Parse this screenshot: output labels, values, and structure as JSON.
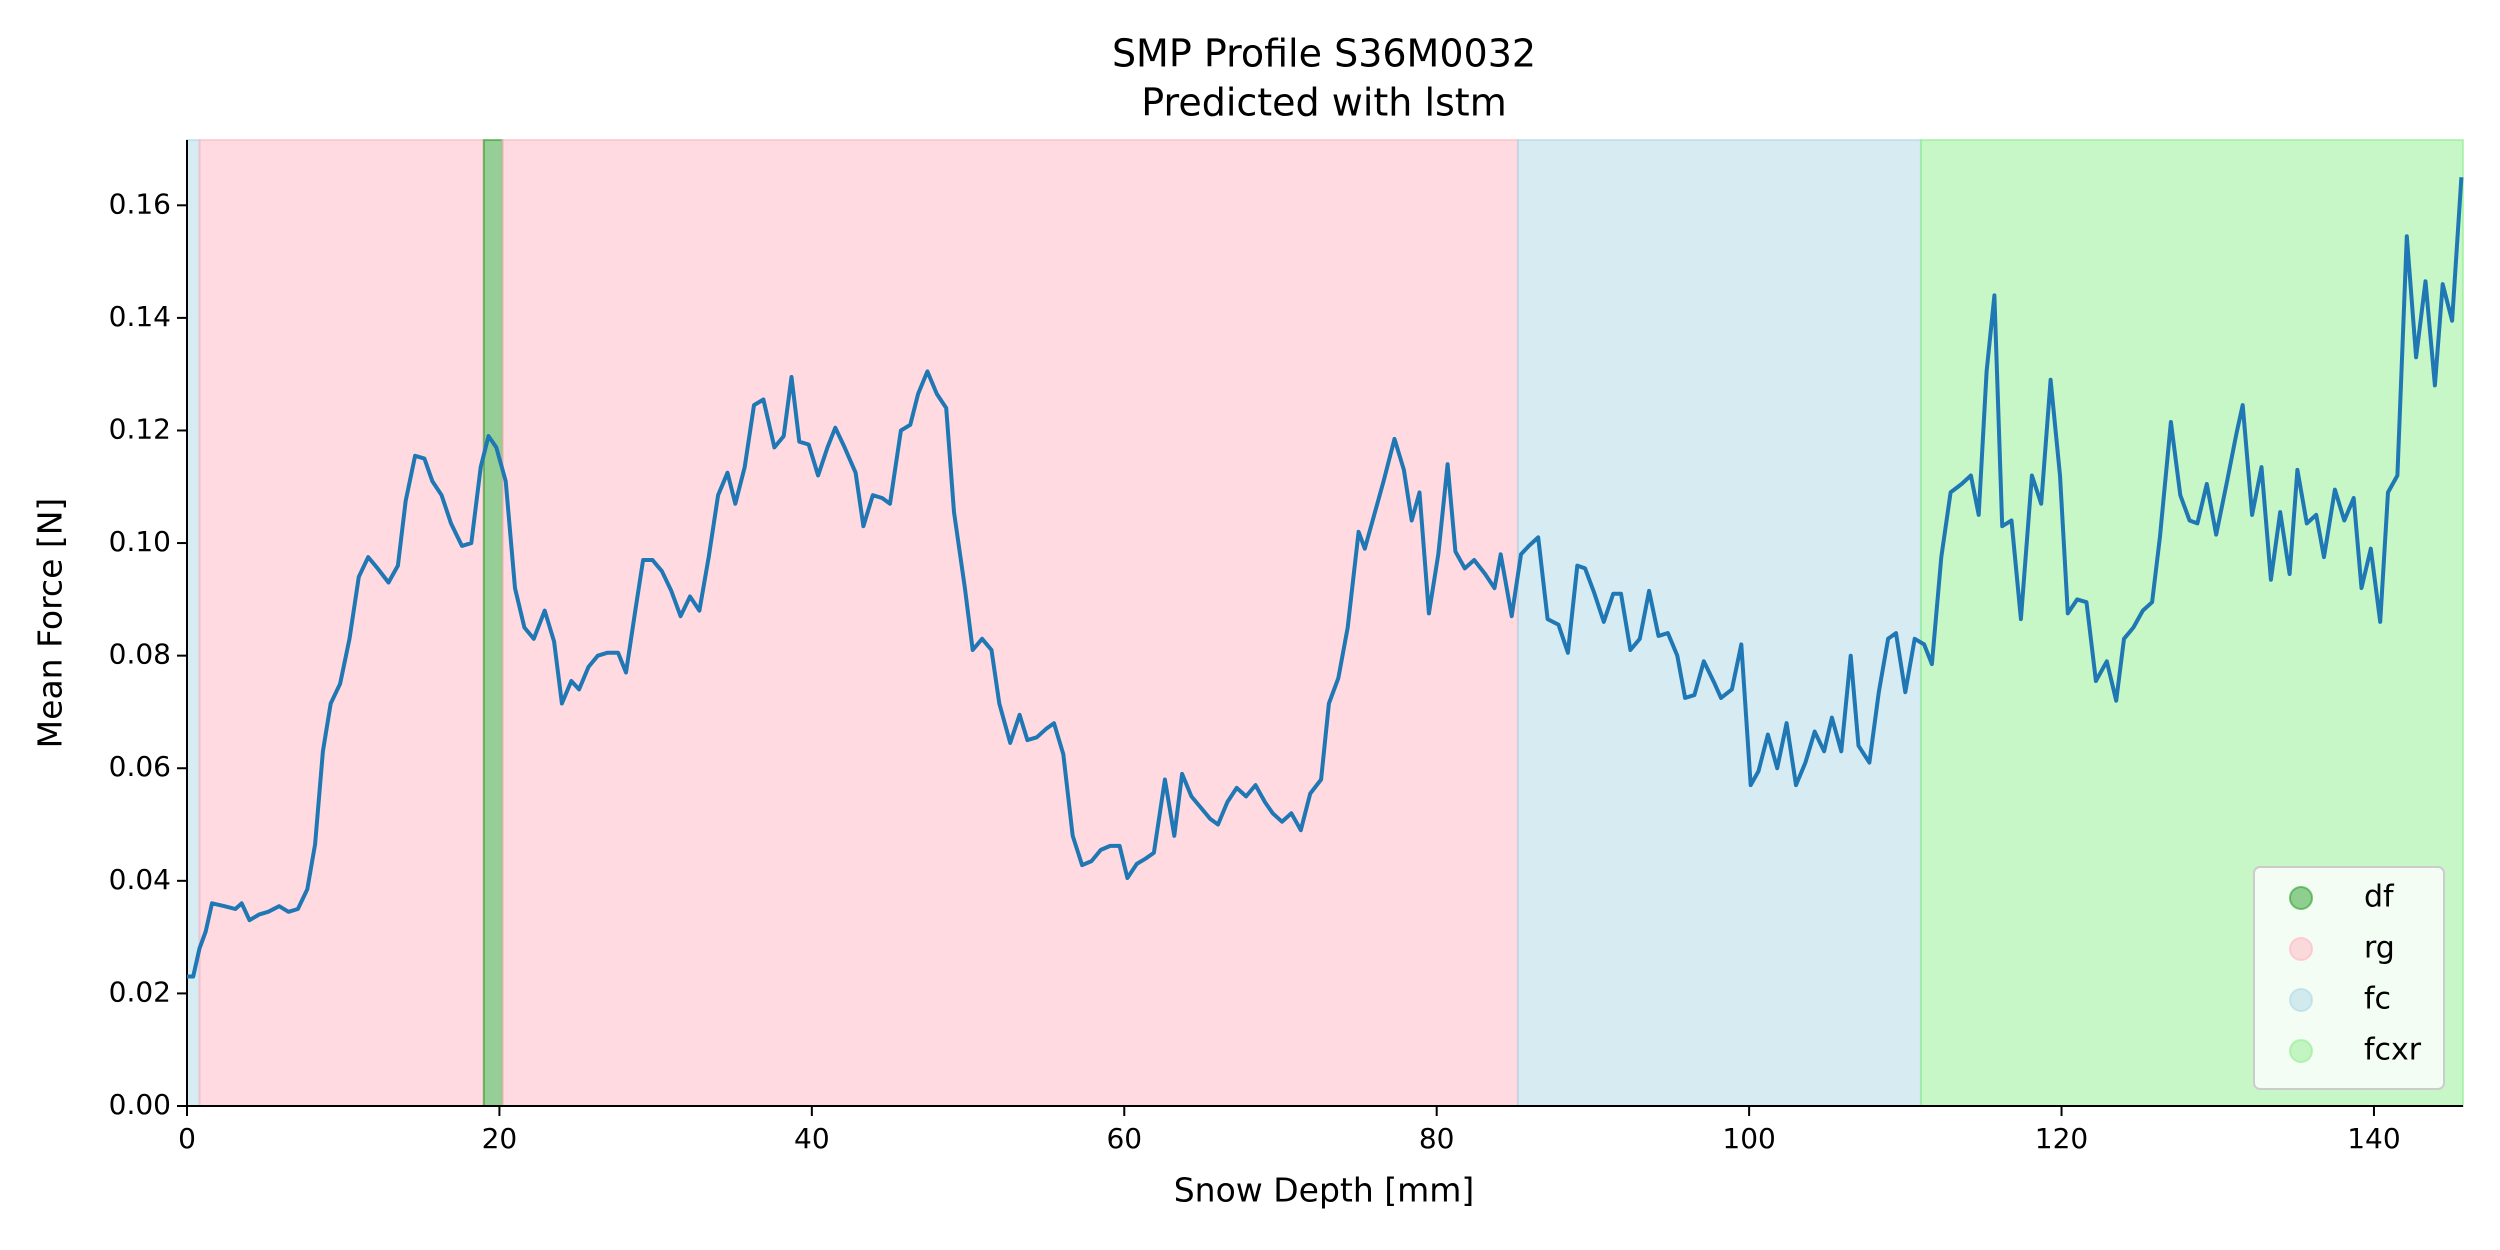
{
  "chart_data": {
    "type": "line",
    "title": "SMP Profile S36M0032",
    "subtitle": "Predicted with lstm",
    "xlabel": "Snow Depth [mm]",
    "ylabel": "Mean Force [N]",
    "xlim": [
      0,
      145.7
    ],
    "ylim": [
      0,
      0.1716
    ],
    "xticks": [
      0,
      20,
      40,
      60,
      80,
      100,
      120,
      140
    ],
    "yticks": [
      {
        "value": 0,
        "label": "0.00"
      },
      {
        "value": 0.02,
        "label": "0.02"
      },
      {
        "value": 0.04,
        "label": "0.04"
      },
      {
        "value": 0.06,
        "label": "0.06"
      },
      {
        "value": 0.08,
        "label": "0.08"
      },
      {
        "value": 0.1,
        "label": "0.10"
      },
      {
        "value": 0.12,
        "label": "0.12"
      },
      {
        "value": 0.14,
        "label": "0.14"
      },
      {
        "value": 0.16,
        "label": "0.16"
      }
    ],
    "legend_position": "lower-right",
    "classes": [
      {
        "name": "df",
        "color": "#2ca02c"
      },
      {
        "name": "rg",
        "color": "#ffb6c1"
      },
      {
        "name": "fc",
        "color": "#add8e6"
      },
      {
        "name": "fcxr",
        "color": "#90ee90"
      }
    ],
    "regions": [
      {
        "start": 0,
        "end": 0.8,
        "color": "#add8e6"
      },
      {
        "start": 0.8,
        "end": 19.0,
        "color": "#ffb6c1"
      },
      {
        "start": 19.0,
        "end": 20.2,
        "color": "#2ca02c"
      },
      {
        "start": 20.2,
        "end": 85.2,
        "color": "#ffb6c1"
      },
      {
        "start": 85.2,
        "end": 111.0,
        "color": "#add8e6"
      },
      {
        "start": 111.0,
        "end": 145.7,
        "color": "#90ee90"
      }
    ],
    "series": [
      {
        "color": "#1f77b4",
        "x": [
          0,
          0.4,
          0.8,
          1.2,
          1.6,
          2.4,
          3.1,
          3.5,
          4.0,
          4.6,
          5.2,
          5.9,
          6.5,
          7.1,
          7.7,
          8.2,
          8.7,
          9.2,
          9.8,
          10.4,
          11.0,
          11.6,
          12.2,
          12.9,
          13.5,
          14.0,
          14.6,
          15.2,
          15.7,
          16.3,
          16.9,
          17.6,
          18.2,
          18.8,
          19.3,
          19.8,
          20.4,
          21.0,
          21.6,
          22.2,
          22.9,
          23.5,
          24.0,
          24.6,
          25.1,
          25.7,
          26.3,
          26.9,
          27.6,
          28.1,
          28.7,
          29.2,
          29.8,
          30.4,
          31.0,
          31.6,
          32.2,
          32.8,
          33.4,
          34.0,
          34.6,
          35.1,
          35.7,
          36.3,
          36.9,
          37.6,
          38.2,
          38.7,
          39.2,
          39.8,
          40.4,
          41.0,
          41.5,
          42.1,
          42.8,
          43.3,
          43.9,
          44.5,
          45.0,
          45.7,
          46.3,
          46.8,
          47.4,
          48.0,
          48.6,
          49.1,
          49.8,
          50.3,
          50.9,
          51.5,
          52.0,
          52.7,
          53.3,
          53.8,
          54.4,
          55.0,
          55.5,
          56.1,
          56.7,
          57.3,
          57.9,
          58.5,
          59.1,
          59.7,
          60.2,
          60.8,
          61.4,
          61.9,
          62.6,
          63.2,
          63.7,
          64.3,
          64.9,
          65.5,
          66.0,
          66.6,
          67.2,
          67.8,
          68.4,
          69.0,
          69.5,
          70.1,
          70.7,
          71.3,
          71.9,
          72.6,
          73.1,
          73.7,
          74.3,
          75.0,
          75.4,
          76.0,
          76.6,
          77.3,
          77.9,
          78.4,
          78.9,
          79.5,
          80.1,
          80.7,
          81.2,
          81.8,
          82.4,
          83.1,
          83.7,
          84.1,
          84.8,
          85.4,
          85.9,
          86.5,
          87.1,
          87.8,
          88.4,
          89.0,
          89.5,
          90.1,
          90.7,
          91.3,
          91.8,
          92.4,
          93.0,
          93.6,
          94.2,
          94.8,
          95.4,
          95.9,
          96.5,
          97.1,
          97.8,
          98.2,
          98.9,
          99.5,
          100.1,
          100.6,
          101.2,
          101.8,
          102.4,
          103.0,
          103.6,
          104.2,
          104.8,
          105.3,
          105.9,
          106.5,
          107.0,
          107.7,
          108.3,
          108.9,
          109.4,
          110.0,
          110.6,
          111.2,
          111.7,
          112.3,
          112.9,
          113.6,
          114.2,
          114.7,
          115.2,
          115.7,
          116.2,
          116.8,
          117.4,
          118.1,
          118.7,
          119.3,
          119.9,
          120.4,
          121.0,
          121.6,
          122.2,
          122.9,
          123.5,
          124.0,
          124.6,
          125.2,
          125.8,
          126.3,
          127.0,
          127.6,
          128.2,
          128.7,
          129.3,
          129.9,
          130.6,
          131.2,
          131.6,
          132.2,
          132.8,
          133.4,
          134.0,
          134.6,
          135.1,
          135.7,
          136.3,
          136.8,
          137.5,
          138.1,
          138.7,
          139.2,
          139.8,
          140.4,
          140.9,
          141.5,
          142.1,
          142.7,
          143.3,
          143.9,
          144.4,
          145.0,
          145.6
        ],
        "values": [
          0.023,
          0.023,
          0.028,
          0.031,
          0.036,
          0.0355,
          0.035,
          0.036,
          0.033,
          0.034,
          0.0345,
          0.0355,
          0.0345,
          0.035,
          0.0385,
          0.0465,
          0.063,
          0.0715,
          0.075,
          0.083,
          0.094,
          0.0975,
          0.0955,
          0.093,
          0.096,
          0.1075,
          0.1155,
          0.115,
          0.111,
          0.1085,
          0.1035,
          0.0995,
          0.1,
          0.1135,
          0.119,
          0.117,
          0.111,
          0.092,
          0.085,
          0.083,
          0.088,
          0.0825,
          0.0715,
          0.0755,
          0.074,
          0.078,
          0.08,
          0.0805,
          0.0805,
          0.077,
          0.088,
          0.097,
          0.097,
          0.095,
          0.0915,
          0.087,
          0.0905,
          0.088,
          0.0975,
          0.1085,
          0.1125,
          0.107,
          0.1135,
          0.1245,
          0.1255,
          0.117,
          0.119,
          0.1295,
          0.118,
          0.1175,
          0.112,
          0.117,
          0.1205,
          0.117,
          0.1125,
          0.103,
          0.1085,
          0.108,
          0.107,
          0.12,
          0.121,
          0.1265,
          0.1305,
          0.1265,
          0.124,
          0.1055,
          0.092,
          0.081,
          0.083,
          0.081,
          0.0715,
          0.0645,
          0.0695,
          0.065,
          0.0655,
          0.067,
          0.068,
          0.0625,
          0.048,
          0.0428,
          0.0435,
          0.0455,
          0.0462,
          0.0462,
          0.0405,
          0.043,
          0.044,
          0.045,
          0.058,
          0.048,
          0.059,
          0.055,
          0.053,
          0.051,
          0.05,
          0.054,
          0.0565,
          0.055,
          0.057,
          0.054,
          0.052,
          0.0505,
          0.052,
          0.049,
          0.0555,
          0.058,
          0.0715,
          0.076,
          0.085,
          0.102,
          0.099,
          0.105,
          0.111,
          0.1185,
          0.113,
          0.104,
          0.109,
          0.0875,
          0.098,
          0.114,
          0.0985,
          0.0955,
          0.097,
          0.0945,
          0.092,
          0.098,
          0.087,
          0.098,
          0.0995,
          0.101,
          0.0865,
          0.0855,
          0.0805,
          0.096,
          0.0955,
          0.091,
          0.086,
          0.091,
          0.091,
          0.081,
          0.083,
          0.0915,
          0.0835,
          0.084,
          0.08,
          0.0725,
          0.073,
          0.079,
          0.075,
          0.0725,
          0.074,
          0.082,
          0.057,
          0.0595,
          0.066,
          0.06,
          0.068,
          0.057,
          0.061,
          0.0665,
          0.063,
          0.069,
          0.063,
          0.08,
          0.064,
          0.061,
          0.0735,
          0.083,
          0.084,
          0.0735,
          0.083,
          0.082,
          0.0785,
          0.0975,
          0.109,
          0.1105,
          0.112,
          0.105,
          0.1305,
          0.144,
          0.103,
          0.104,
          0.0865,
          0.112,
          0.107,
          0.129,
          0.112,
          0.0875,
          0.09,
          0.0895,
          0.0755,
          0.079,
          0.072,
          0.083,
          0.085,
          0.088,
          0.0895,
          0.101,
          0.1215,
          0.1085,
          0.104,
          0.1035,
          0.1105,
          0.1015,
          0.111,
          0.1195,
          0.1245,
          0.105,
          0.1135,
          0.0935,
          0.1055,
          0.0945,
          0.113,
          0.1035,
          0.105,
          0.0975,
          0.1095,
          0.104,
          0.108,
          0.092,
          0.099,
          0.086,
          0.109,
          0.112,
          0.1545,
          0.133,
          0.1465,
          0.128,
          0.146,
          0.1395,
          0.165
        ]
      }
    ]
  }
}
